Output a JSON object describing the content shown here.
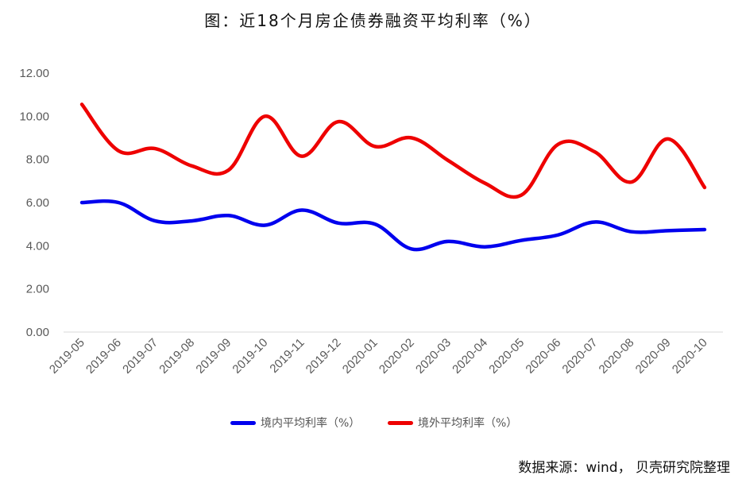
{
  "chart_data": {
    "type": "line",
    "title": "图：近18个月房企债券融资平均利率（%）",
    "xlabel": "",
    "ylabel": "",
    "categories": [
      "2019-05",
      "2019-06",
      "2019-07",
      "2019-08",
      "2019-09",
      "2019-10",
      "2019-11",
      "2019-12",
      "2020-01",
      "2020-02",
      "2020-03",
      "2020-04",
      "2020-05",
      "2020-06",
      "2020-07",
      "2020-08",
      "2020-09",
      "2020-10"
    ],
    "y_ticks": [
      "0.00",
      "2.00",
      "4.00",
      "6.00",
      "8.00",
      "10.00",
      "12.00"
    ],
    "ylim": [
      0,
      12
    ],
    "grid": false,
    "legend_position": "bottom",
    "series": [
      {
        "name": "境内平均利率（%）",
        "color": "#0000EE",
        "values": [
          6.0,
          6.0,
          5.15,
          5.15,
          5.4,
          4.95,
          5.65,
          5.05,
          5.0,
          3.85,
          4.2,
          3.95,
          4.25,
          4.5,
          5.1,
          4.65,
          4.7,
          4.75
        ]
      },
      {
        "name": "境外平均利率（%）",
        "color": "#EE0000",
        "values": [
          10.55,
          8.4,
          8.5,
          7.7,
          7.5,
          10.0,
          8.15,
          9.75,
          8.6,
          9.0,
          7.95,
          6.9,
          6.35,
          8.7,
          8.35,
          6.95,
          8.95,
          6.7
        ]
      }
    ]
  },
  "source": "数据来源：wind，  贝壳研究院整理"
}
